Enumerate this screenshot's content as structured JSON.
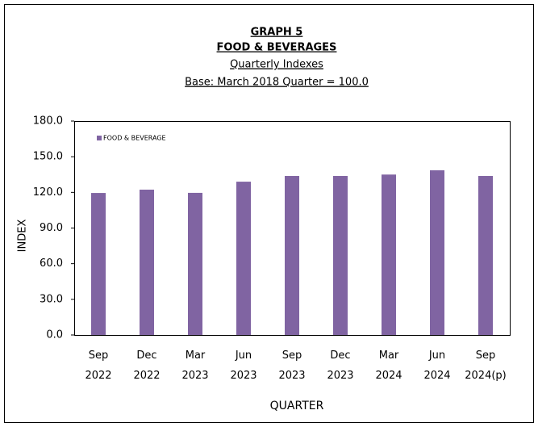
{
  "chart_data": {
    "type": "bar",
    "title": "GRAPH  5",
    "subtitle": "FOOD & BEVERAGES",
    "subtitle2": "Quarterly Indexes",
    "subtitle3": "Base: March 2018 Quarter = 100.0",
    "x_label": "QUARTER",
    "y_label": "INDEX",
    "categories": [
      "Sep 2022",
      "Dec 2022",
      "Mar 2023",
      "Jun 2023",
      "Sep 2023",
      "Dec 2023",
      "Mar 2024",
      "Jun 2024",
      "Sep 2024(p)"
    ],
    "series": [
      {
        "name": "FOOD & BEVERAGE",
        "color": "#8064a2",
        "values": [
          119.5,
          122.3,
          119.6,
          129.0,
          133.8,
          133.8,
          135.0,
          138.6,
          133.8
        ]
      }
    ],
    "ylim": [
      0,
      180
    ],
    "yticks": [
      {
        "value": 0,
        "label": "0.0"
      },
      {
        "value": 30,
        "label": "30.0"
      },
      {
        "value": 60,
        "label": "60.0"
      },
      {
        "value": 90,
        "label": "90.0"
      },
      {
        "value": 120,
        "label": "120.0"
      },
      {
        "value": 150,
        "label": "150.0"
      },
      {
        "value": 180,
        "label": "180.0"
      }
    ],
    "legend": "upper left"
  }
}
